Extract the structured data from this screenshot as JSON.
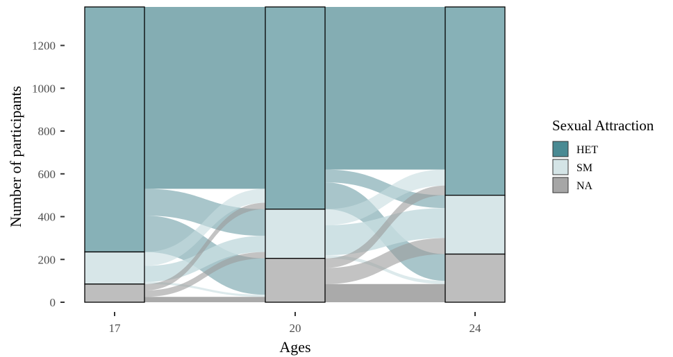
{
  "chart_data": {
    "type": "alluvial",
    "xlabel": "Ages",
    "ylabel": "Number of participants",
    "ylim": [
      0,
      1380
    ],
    "yticks": [
      0,
      200,
      400,
      600,
      800,
      1000,
      1200
    ],
    "ytick_labels": [
      "0",
      "200",
      "400",
      "600",
      "800",
      "1000",
      "1200"
    ],
    "axes": [
      "17",
      "20",
      "24"
    ],
    "strata_order_top_to_bottom": [
      "HET",
      "SM",
      "NA"
    ],
    "strata": {
      "17": {
        "HET": 1145,
        "SM": 150,
        "NA": 85
      },
      "20": {
        "HET": 945,
        "SM": 230,
        "NA": 205
      },
      "24": {
        "HET": 880,
        "SM": 275,
        "NA": 225
      }
    },
    "flows": [
      {
        "from_axis": "17",
        "to_axis": "20",
        "source": "HET",
        "target": "HET",
        "value": 850
      },
      {
        "from_axis": "17",
        "to_axis": "20",
        "source": "HET",
        "target": "SM",
        "value": 125
      },
      {
        "from_axis": "17",
        "to_axis": "20",
        "source": "HET",
        "target": "NA",
        "value": 170
      },
      {
        "from_axis": "17",
        "to_axis": "20",
        "source": "SM",
        "target": "HET",
        "value": 65
      },
      {
        "from_axis": "17",
        "to_axis": "20",
        "source": "SM",
        "target": "SM",
        "value": 75
      },
      {
        "from_axis": "17",
        "to_axis": "20",
        "source": "SM",
        "target": "NA",
        "value": 10
      },
      {
        "from_axis": "17",
        "to_axis": "20",
        "source": "NA",
        "target": "HET",
        "value": 30
      },
      {
        "from_axis": "17",
        "to_axis": "20",
        "source": "NA",
        "target": "SM",
        "value": 30
      },
      {
        "from_axis": "17",
        "to_axis": "20",
        "source": "NA",
        "target": "NA",
        "value": 25
      },
      {
        "from_axis": "20",
        "to_axis": "24",
        "source": "HET",
        "target": "HET",
        "value": 760
      },
      {
        "from_axis": "20",
        "to_axis": "24",
        "source": "HET",
        "target": "SM",
        "value": 60
      },
      {
        "from_axis": "20",
        "to_axis": "24",
        "source": "HET",
        "target": "NA",
        "value": 125
      },
      {
        "from_axis": "20",
        "to_axis": "24",
        "source": "SM",
        "target": "HET",
        "value": 75
      },
      {
        "from_axis": "20",
        "to_axis": "24",
        "source": "SM",
        "target": "SM",
        "value": 140
      },
      {
        "from_axis": "20",
        "to_axis": "24",
        "source": "SM",
        "target": "NA",
        "value": 15
      },
      {
        "from_axis": "20",
        "to_axis": "24",
        "source": "NA",
        "target": "HET",
        "value": 45
      },
      {
        "from_axis": "20",
        "to_axis": "24",
        "source": "NA",
        "target": "SM",
        "value": 75
      },
      {
        "from_axis": "20",
        "to_axis": "24",
        "source": "NA",
        "target": "NA",
        "value": 85
      }
    ],
    "legend": {
      "title": "Sexual Attraction",
      "placement": "right",
      "entries": [
        {
          "key": "HET",
          "label": "HET",
          "color": "#4a8a93"
        },
        {
          "key": "SM",
          "label": "SM",
          "color": "#d4e4e6"
        },
        {
          "key": "NA",
          "label": "NA",
          "color": "#a6a6a6"
        }
      ]
    },
    "colors": {
      "HET": {
        "fill": "#87b1b7",
        "flow": "#6e9fa6"
      },
      "SM": {
        "fill": "#d7e6e8",
        "flow": "#c6dcdf"
      },
      "NA": {
        "fill": "#bebebe",
        "flow": "#9b9b9b"
      }
    },
    "grid": false
  }
}
